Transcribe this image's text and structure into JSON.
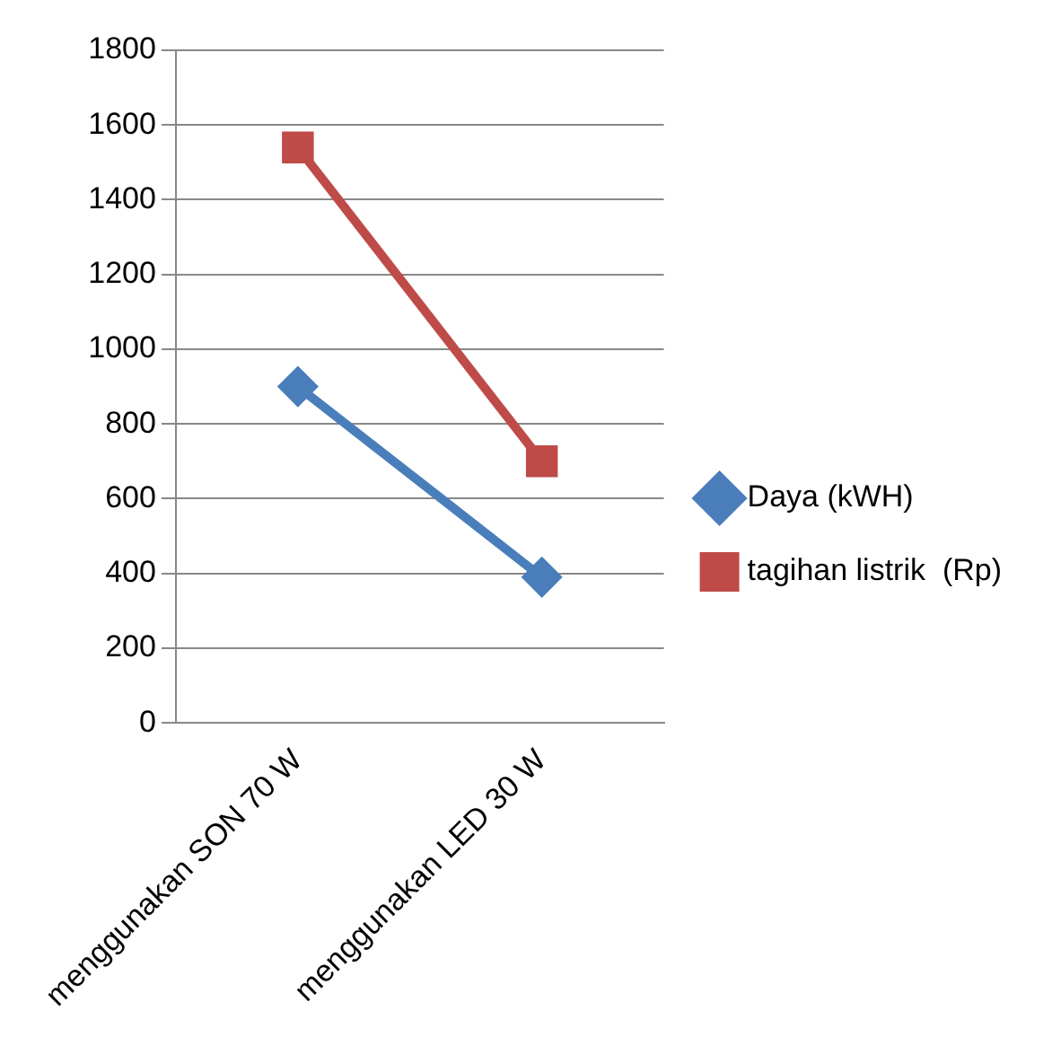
{
  "chart_data": {
    "type": "line",
    "categories": [
      "menggunakan SON 70 W",
      "menggunakan LED 30 W"
    ],
    "series": [
      {
        "name": "Daya (kWH)",
        "color": "#4a7ebb",
        "values": [
          900,
          390
        ],
        "marker": "diamond"
      },
      {
        "name": "tagihan listrik  (Rp)",
        "color": "#be4b48",
        "values": [
          1540,
          700
        ],
        "marker": "square"
      }
    ],
    "ylim": [
      0,
      1800
    ],
    "yticks": [
      0,
      200,
      400,
      600,
      800,
      1000,
      1200,
      1400,
      1600,
      1800
    ],
    "grid": "y",
    "legend": "right"
  }
}
